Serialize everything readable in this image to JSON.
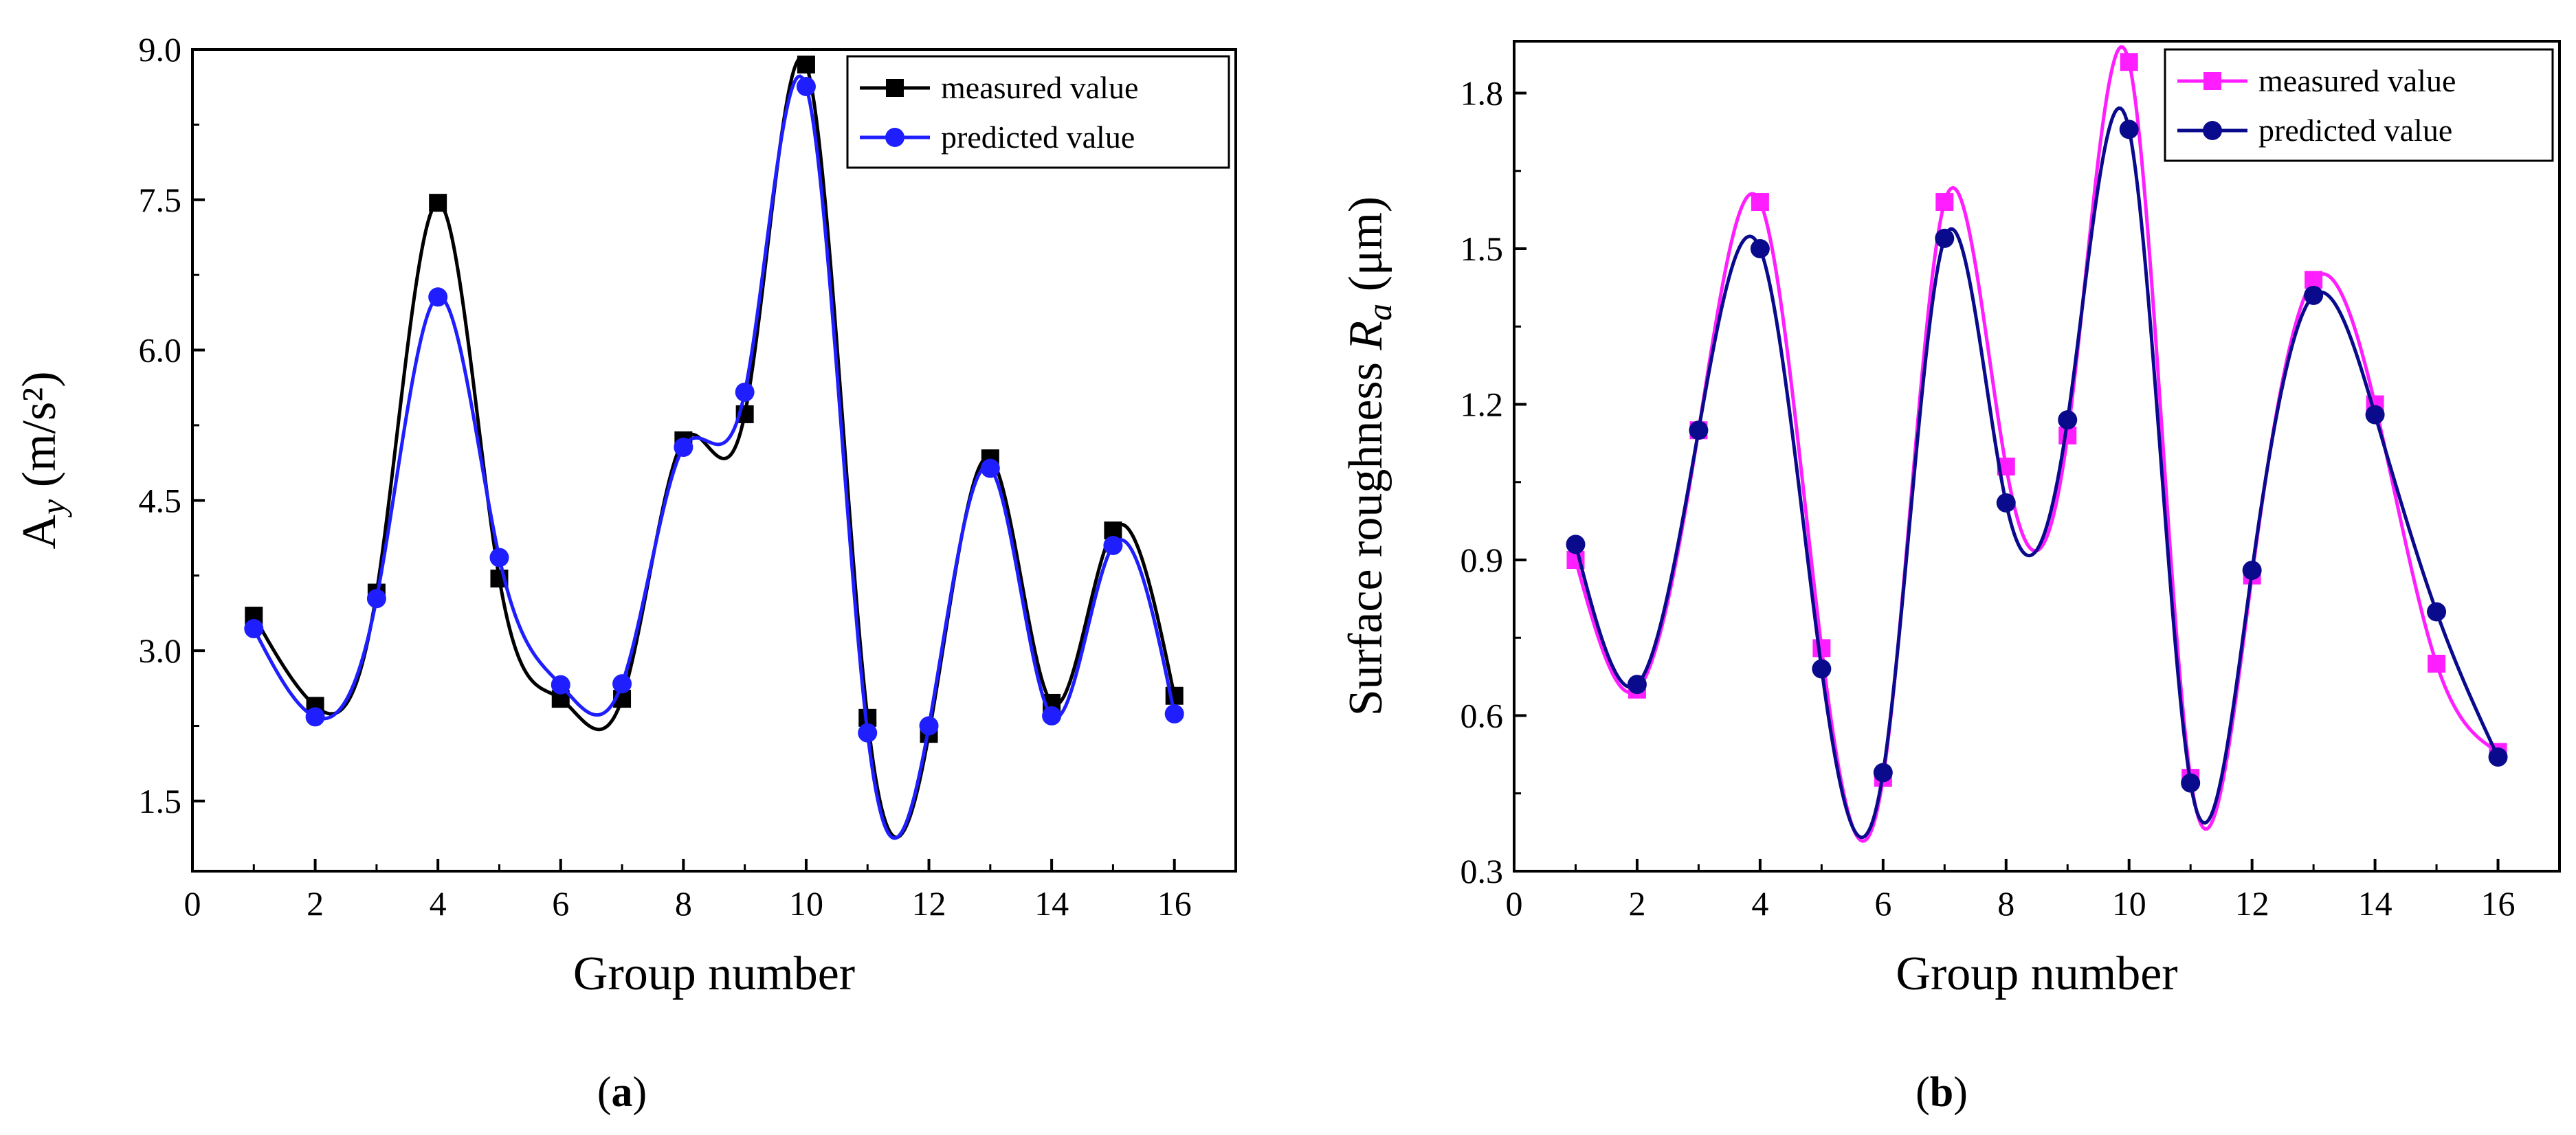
{
  "chart_data": [
    {
      "type": "line",
      "panel_label": "(a)",
      "xlabel": "Group number",
      "ylabel_main": "A",
      "ylabel_sub": "y",
      "ylabel_unit": " (m/s²)",
      "xlim": [
        0,
        17
      ],
      "ylim": [
        0.8,
        9.0
      ],
      "xticks": [
        0,
        2,
        4,
        6,
        8,
        10,
        12,
        14,
        16
      ],
      "xtick_labels": [
        "0",
        "2",
        "4",
        "6",
        "8",
        "10",
        "12",
        "14",
        "16"
      ],
      "yticks": [
        1.5,
        3.0,
        4.5,
        6.0,
        7.5,
        9.0
      ],
      "ytick_labels": [
        "1.5",
        "3.0",
        "4.5",
        "6.0",
        "7.5",
        "9.0"
      ],
      "legend_position": "top-right",
      "x": [
        1,
        2,
        3,
        4,
        5,
        6,
        7,
        8,
        9,
        10,
        11,
        12,
        13,
        14,
        15,
        16
      ],
      "series": [
        {
          "name": "measured value",
          "color": "#000000",
          "marker": "square",
          "values": [
            3.35,
            2.45,
            3.58,
            7.47,
            3.72,
            2.52,
            2.52,
            5.1,
            5.36,
            8.85,
            2.33,
            2.17,
            4.92,
            2.48,
            4.2,
            2.55
          ]
        },
        {
          "name": "predicted value",
          "color": "#1e1eff",
          "marker": "circle",
          "values": [
            3.22,
            2.34,
            3.52,
            6.53,
            3.93,
            2.66,
            2.67,
            5.03,
            5.58,
            8.63,
            2.18,
            2.25,
            4.82,
            2.35,
            4.05,
            2.37
          ]
        }
      ]
    },
    {
      "type": "line",
      "panel_label": "(b)",
      "xlabel": "Group number",
      "ylabel_main": "Surface roughness ",
      "ylabel_sym": "R",
      "ylabel_sub": "a",
      "ylabel_unit": " (μm)",
      "xlim": [
        0,
        17
      ],
      "ylim": [
        0.3,
        1.9
      ],
      "xticks": [
        0,
        2,
        4,
        6,
        8,
        10,
        12,
        14,
        16
      ],
      "xtick_labels": [
        "0",
        "2",
        "4",
        "6",
        "8",
        "10",
        "12",
        "14",
        "16"
      ],
      "yticks": [
        0.3,
        0.6,
        0.9,
        1.2,
        1.5,
        1.8
      ],
      "ytick_labels": [
        "0.3",
        "0.6",
        "0.9",
        "1.2",
        "1.5",
        "1.8"
      ],
      "legend_position": "top-right",
      "x": [
        1,
        2,
        3,
        4,
        5,
        6,
        7,
        8,
        9,
        10,
        11,
        12,
        13,
        14,
        15,
        16
      ],
      "series": [
        {
          "name": "measured value",
          "color": "#ff1eff",
          "marker": "square",
          "values": [
            0.9,
            0.65,
            1.15,
            1.59,
            0.73,
            0.48,
            1.59,
            1.08,
            1.14,
            1.86,
            0.48,
            0.87,
            1.44,
            1.2,
            0.7,
            0.53
          ]
        },
        {
          "name": "predicted value",
          "color": "#0a0a8c",
          "marker": "circle",
          "values": [
            0.93,
            0.66,
            1.15,
            1.5,
            0.69,
            0.49,
            1.52,
            1.01,
            1.17,
            1.73,
            0.47,
            0.88,
            1.41,
            1.18,
            0.8,
            0.52
          ]
        }
      ]
    }
  ]
}
